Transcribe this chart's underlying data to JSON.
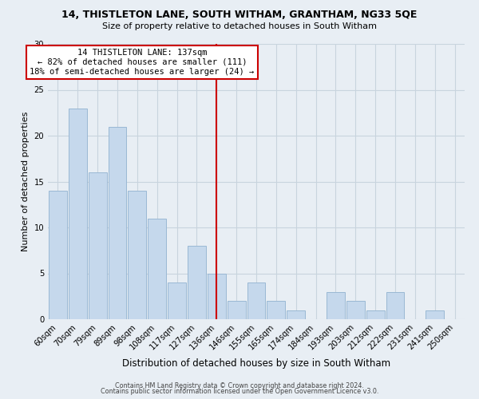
{
  "title": "14, THISTLETON LANE, SOUTH WITHAM, GRANTHAM, NG33 5QE",
  "subtitle": "Size of property relative to detached houses in South Witham",
  "xlabel": "Distribution of detached houses by size in South Witham",
  "ylabel": "Number of detached properties",
  "footer1": "Contains HM Land Registry data © Crown copyright and database right 2024.",
  "footer2": "Contains public sector information licensed under the Open Government Licence v3.0.",
  "bar_labels": [
    "60sqm",
    "70sqm",
    "79sqm",
    "89sqm",
    "98sqm",
    "108sqm",
    "117sqm",
    "127sqm",
    "136sqm",
    "146sqm",
    "155sqm",
    "165sqm",
    "174sqm",
    "184sqm",
    "193sqm",
    "203sqm",
    "212sqm",
    "222sqm",
    "231sqm",
    "241sqm",
    "250sqm"
  ],
  "bar_values": [
    14,
    23,
    16,
    21,
    14,
    11,
    4,
    8,
    5,
    2,
    4,
    2,
    1,
    0,
    3,
    2,
    1,
    3,
    0,
    1,
    0
  ],
  "bar_color": "#c5d8ec",
  "bar_edge_color": "#9ab8d4",
  "vline_color": "#cc0000",
  "annotation_title": "14 THISTLETON LANE: 137sqm",
  "annotation_line1": "← 82% of detached houses are smaller (111)",
  "annotation_line2": "18% of semi-detached houses are larger (24) →",
  "annotation_box_edge": "#cc0000",
  "ylim": [
    0,
    30
  ],
  "yticks": [
    0,
    5,
    10,
    15,
    20,
    25,
    30
  ],
  "background_color": "#e8eef4",
  "grid_color": "#c8d4de"
}
